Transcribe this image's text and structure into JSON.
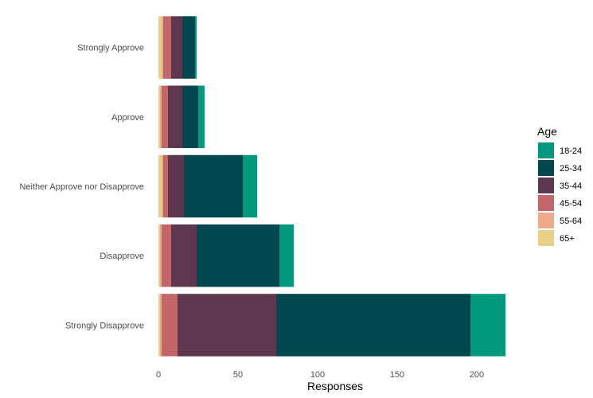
{
  "chart_data": {
    "type": "bar",
    "orientation": "horizontal",
    "stacked": true,
    "categories": [
      "Strongly Approve",
      "Approve",
      "Neither Approve nor Disapprove",
      "Disapprove",
      "Strongly Disapprove"
    ],
    "series": [
      {
        "name": "65+",
        "color": "#E8D186",
        "values": [
          2,
          1,
          2,
          1,
          1
        ]
      },
      {
        "name": "55-64",
        "color": "#EFA98C",
        "values": [
          1,
          1,
          1,
          1,
          1
        ]
      },
      {
        "name": "45-54",
        "color": "#C2666B",
        "values": [
          5,
          4,
          3,
          6,
          10
        ]
      },
      {
        "name": "35-44",
        "color": "#5C374D",
        "values": [
          7,
          9,
          10,
          16,
          62
        ]
      },
      {
        "name": "25-34",
        "color": "#03484F",
        "values": [
          8,
          10,
          37,
          52,
          122
        ]
      },
      {
        "name": "18-24",
        "color": "#00997E",
        "values": [
          1,
          4,
          9,
          9,
          22
        ]
      }
    ],
    "xlabel": "Responses",
    "ylabel": "",
    "xlim": [
      0,
      222
    ],
    "xticks": [
      0,
      50,
      100,
      150,
      200
    ],
    "grid": false,
    "legend": {
      "title": "Age",
      "position": "right",
      "order": [
        "18-24",
        "25-34",
        "35-44",
        "45-54",
        "55-64",
        "65+"
      ]
    }
  }
}
